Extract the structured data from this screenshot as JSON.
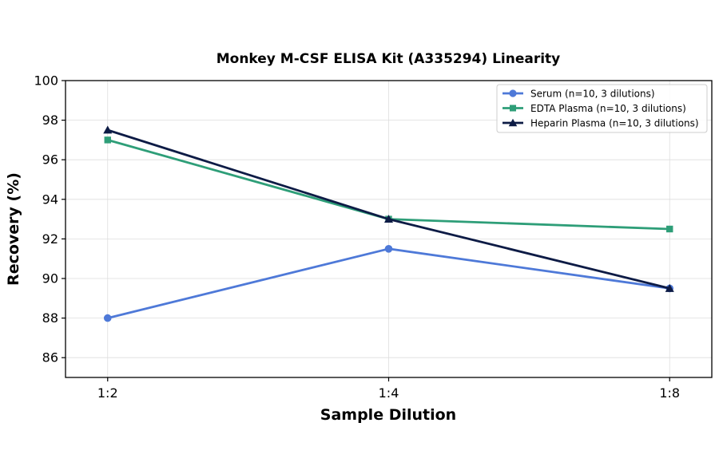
{
  "chart_data": {
    "type": "line",
    "title": "Monkey M-CSF ELISA Kit (A335294) Linearity",
    "xlabel": "Sample Dilution",
    "ylabel": "Recovery (%)",
    "categories": [
      "1:2",
      "1:4",
      "1:8"
    ],
    "ylim": [
      85,
      100
    ],
    "yticks": [
      86,
      88,
      90,
      92,
      94,
      96,
      98,
      100
    ],
    "grid": true,
    "legend_position": "top-right",
    "series": [
      {
        "name": "Serum (n=10, 3 dilutions)",
        "values": [
          88.0,
          91.5,
          89.5
        ],
        "color": "#4e79d8",
        "marker": "circle"
      },
      {
        "name": "EDTA Plasma (n=10, 3 dilutions)",
        "values": [
          97.0,
          93.0,
          92.5
        ],
        "color": "#2e9e78",
        "marker": "square"
      },
      {
        "name": "Heparin Plasma (n=10, 3 dilutions)",
        "values": [
          97.5,
          93.0,
          89.5
        ],
        "color": "#0d1b45",
        "marker": "triangle"
      }
    ]
  }
}
